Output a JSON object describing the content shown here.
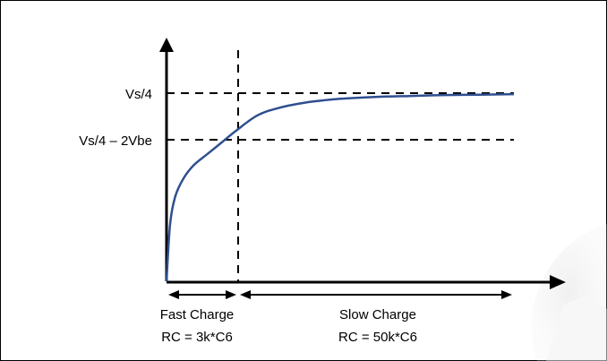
{
  "chart_data": {
    "type": "line",
    "title": "",
    "xlabel": "",
    "ylabel": "",
    "y_tick_labels": [
      "Vs/4",
      "Vs/4 – 2Vbe"
    ],
    "y_reference_levels": [
      1.0,
      0.8
    ],
    "x_marker_label": "",
    "regions": [
      {
        "label": "Fast Charge",
        "rc": "RC = 3k*C6"
      },
      {
        "label": "Slow Charge",
        "rc": "RC = 50k*C6"
      }
    ],
    "series": [
      {
        "color": "#2f4f8f",
        "x": [
          0.0,
          0.01,
          0.025,
          0.05,
          0.08,
          0.12,
          0.16,
          0.2,
          0.26,
          0.32,
          0.4,
          0.5,
          0.6,
          0.7,
          0.8,
          0.9,
          1.0
        ],
        "y": [
          0.0,
          0.3,
          0.45,
          0.55,
          0.62,
          0.68,
          0.74,
          0.8,
          0.88,
          0.92,
          0.95,
          0.97,
          0.98,
          0.985,
          0.99,
          0.992,
          0.995
        ]
      }
    ],
    "ylim": [
      0,
      1
    ],
    "xlim": [
      0,
      1
    ],
    "grid": false,
    "colors": {
      "axis": "#000000",
      "curve": "#2f4f8f"
    }
  }
}
